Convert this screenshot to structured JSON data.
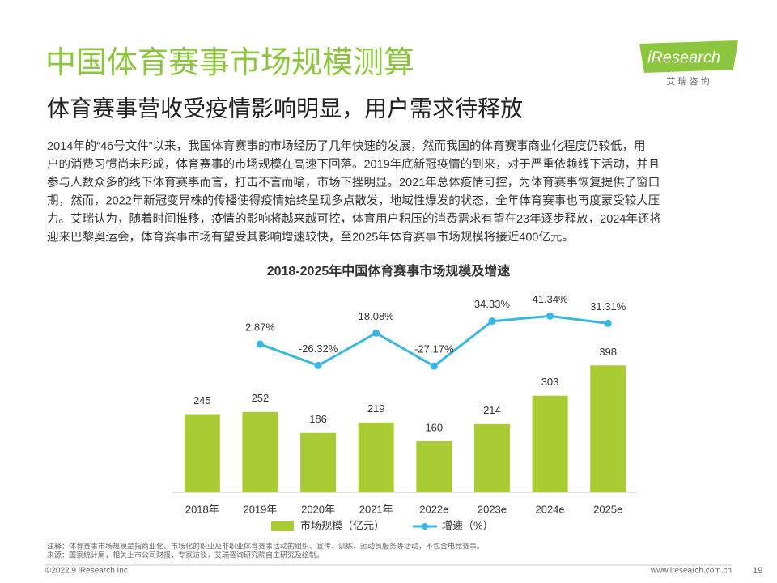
{
  "header": {
    "title": "中国体育赛事市场规模测算",
    "subtitle": "体育赛事营收受疫情影响明显，用户需求待释放",
    "logo": "iResearch",
    "logo_sub": "艾 瑞 咨 询"
  },
  "body": {
    "lines": [
      "2014年的“46号文件”以来，我国体育赛事的市场经历了几年快速的发展，然而我国的体育赛事商业化程度仍较低，用",
      "户的消费习惯尚未形成，体育赛事的市场规模在高速下回落。2019年底新冠疫情的到来，对于严重依赖线下活动，并且",
      "参与人数众多的线下体育赛事而言，打击不言而喻，市场下挫明显。2021年总体疫情可控，为体育赛事恢复提供了窗口",
      "期，然而，2022年新冠变异株的传播使得疫情始终呈现多点散发，地域性爆发的状态，全年体育赛事也再度蒙受较大压",
      "力。艾瑞认为，随着时间推移，疫情的影响将越来越可控，体育用户积压的消费需求有望在23年逐步释放，2024年还将",
      "迎来巴黎奥运会，体育赛事市场有望受其影响增速较快，至2025年体育赛事市场规模将接近400亿元。"
    ]
  },
  "chart_data": {
    "type": "bar",
    "title": "2018-2025年中国体育赛事市场规模及增速",
    "categories": [
      "2018年",
      "2019年",
      "2020年",
      "2021年",
      "2022e",
      "2023e",
      "2024e",
      "2025e"
    ],
    "series": [
      {
        "name": "市场规模（亿元）",
        "color": "#a9cc35",
        "values": [
          245,
          252,
          186,
          219,
          160,
          214,
          303,
          398
        ]
      },
      {
        "name": "增速（%）",
        "color": "#38b6e6",
        "axis": "y2",
        "type": "line",
        "values": [
          null,
          2.87,
          -26.32,
          18.08,
          -27.17,
          34.33,
          41.34,
          31.31
        ],
        "value_labels": [
          null,
          "2.87%",
          "-26.32%",
          "18.08%",
          "-27.17%",
          "34.33%",
          "41.34%",
          "31.31%"
        ]
      }
    ],
    "ylim": [
      0,
      630
    ],
    "y2lim": [
      -200,
      75
    ],
    "legend": "bottom"
  },
  "notes": [
    "注释：体育赛事市场规模是指商业化、市场化的职业及非职业体育赛事活动的组织、宣传、训练、运动员服务等活动，不包含电竞赛事。",
    "来源：国家统计局，相关上市公司财报，专家访谈，艾瑞咨询研究院自主研究及绘制。"
  ],
  "footer": {
    "copyright": "©2022.9 iResearch Inc.",
    "url": "www.iresearch.com.cn",
    "page": "19"
  }
}
